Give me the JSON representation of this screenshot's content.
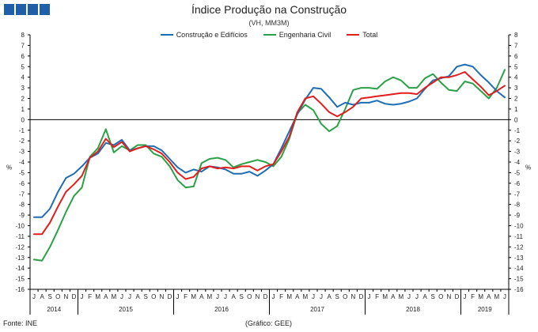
{
  "header": {
    "title": "Índice Produção na Construção",
    "subtitle": "(VH, MM3M)"
  },
  "footer": {
    "source": "Fonte: INE",
    "credit": "(Gráfico: GEE)"
  },
  "colors": {
    "logo": "#1f5fa8",
    "axis": "#000000",
    "grid": "#cfcfcf"
  },
  "chart_data": {
    "type": "line",
    "title": "Índice Produção na Construção",
    "subtitle": "(VH, MM3M)",
    "ylabel": "%",
    "ylim": [
      -16,
      8
    ],
    "yticks": [
      8,
      7,
      6,
      5,
      4,
      3,
      2,
      1,
      0,
      -1,
      -2,
      -3,
      -4,
      -5,
      -6,
      -7,
      -8,
      -9,
      -10,
      -11,
      -12,
      -13,
      -14,
      -15,
      -16
    ],
    "grid": false,
    "legend_position": "top",
    "month_labels": [
      "J",
      "A",
      "S",
      "O",
      "N",
      "D",
      "J",
      "F",
      "M",
      "A",
      "M",
      "J",
      "J",
      "A",
      "S",
      "O",
      "N",
      "D",
      "J",
      "F",
      "M",
      "A",
      "M",
      "J",
      "J",
      "A",
      "S",
      "O",
      "N",
      "D",
      "J",
      "F",
      "M",
      "A",
      "M",
      "J",
      "J",
      "A",
      "S",
      "O",
      "N",
      "D",
      "J",
      "F",
      "M",
      "A",
      "M",
      "J",
      "J",
      "A",
      "S",
      "O",
      "N",
      "D",
      "J",
      "F",
      "M",
      "A",
      "M",
      "J"
    ],
    "years": [
      {
        "label": "2014",
        "start": 0,
        "end": 6
      },
      {
        "label": "2015",
        "start": 6,
        "end": 18
      },
      {
        "label": "2016",
        "start": 18,
        "end": 30
      },
      {
        "label": "2017",
        "start": 30,
        "end": 42
      },
      {
        "label": "2018",
        "start": 42,
        "end": 54
      },
      {
        "label": "2019",
        "start": 54,
        "end": 60
      }
    ],
    "series": [
      {
        "name": "Construção e Edifícios",
        "color": "#1f6db5",
        "values": [
          -9.2,
          -9.2,
          -8.4,
          -6.8,
          -5.5,
          -5.1,
          -4.4,
          -3.6,
          -3.2,
          -2.2,
          -2.4,
          -1.9,
          -2.9,
          -2.7,
          -2.5,
          -2.5,
          -2.9,
          -3.7,
          -4.5,
          -5,
          -4.7,
          -4.9,
          -4.4,
          -4.5,
          -4.7,
          -5.1,
          -5.1,
          -4.9,
          -5.3,
          -4.8,
          -4.2,
          -2.7,
          -1.1,
          0.5,
          1.9,
          3,
          2.9,
          2.1,
          1.2,
          1.6,
          1.4,
          1.6,
          1.6,
          1.8,
          1.5,
          1.4,
          1.5,
          1.7,
          2,
          2.9,
          3.7,
          3.9,
          4.1,
          5,
          5.2,
          5,
          4.2,
          3.5,
          2.7,
          2.1
        ]
      },
      {
        "name": "Engenharia Civil",
        "color": "#2aa146",
        "values": [
          -13.2,
          -13.3,
          -12,
          -10.4,
          -8.7,
          -7.2,
          -6.4,
          -3.5,
          -2.7,
          -0.9,
          -3.1,
          -2.5,
          -2.9,
          -2.4,
          -2.4,
          -3.2,
          -3.5,
          -4.4,
          -5.7,
          -6.4,
          -6.3,
          -4.1,
          -3.7,
          -3.6,
          -3.8,
          -4.5,
          -4.2,
          -4,
          -3.8,
          -4,
          -4.4,
          -3.5,
          -1.8,
          0.6,
          1.4,
          0.9,
          -0.4,
          -1.1,
          -0.6,
          1,
          2.8,
          3,
          3,
          2.9,
          3.6,
          4,
          3.7,
          3,
          3,
          3.9,
          4.3,
          3.5,
          2.8,
          2.7,
          3.6,
          3.4,
          2.7,
          2,
          3,
          4.7
        ]
      },
      {
        "name": "Total",
        "color": "#e01e1e",
        "values": [
          -10.8,
          -10.8,
          -9.7,
          -8.2,
          -6.8,
          -6.1,
          -5.3,
          -3.6,
          -3,
          -1.8,
          -2.6,
          -2.1,
          -3,
          -2.7,
          -2.5,
          -2.8,
          -3.2,
          -4,
          -5,
          -5.6,
          -5.4,
          -4.6,
          -4.4,
          -4.6,
          -4.5,
          -4.6,
          -4.4,
          -4.4,
          -4.8,
          -4.4,
          -4.2,
          -3,
          -1.6,
          0.7,
          2,
          2.2,
          1.5,
          0.7,
          0.3,
          0.7,
          1.2,
          2,
          2.1,
          2.2,
          2.3,
          2.4,
          2.5,
          2.5,
          2.4,
          3,
          3.5,
          4,
          4,
          4.2,
          4.5,
          3.8,
          3.1,
          2.3,
          2.7,
          3.2
        ]
      }
    ]
  }
}
